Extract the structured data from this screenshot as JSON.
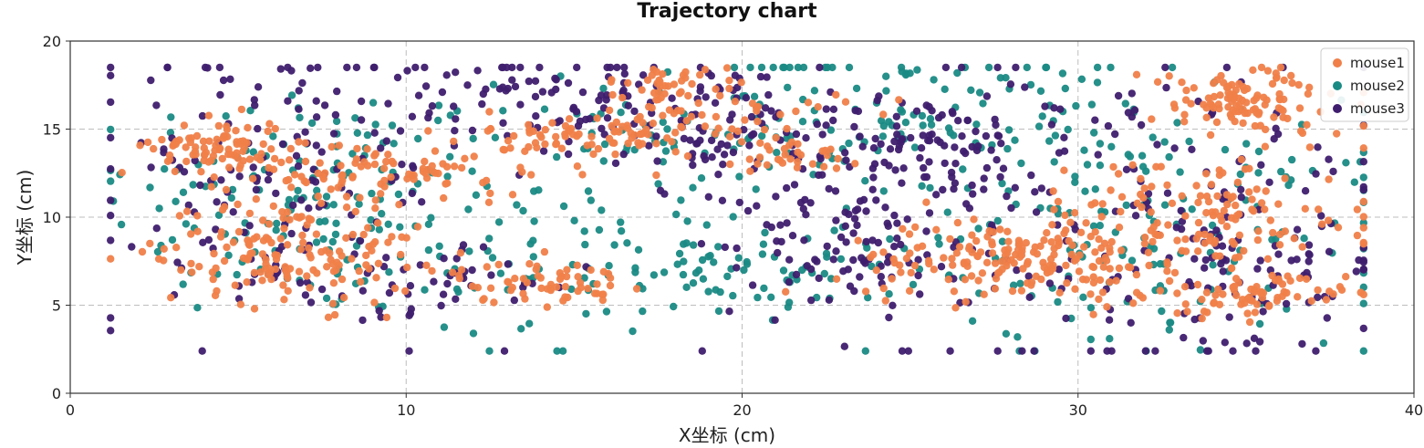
{
  "chart_data": {
    "type": "scatter",
    "title": "Trajectory chart",
    "xlabel": "X坐标 (cm)",
    "ylabel": "Y坐标 (cm)",
    "xlim": [
      0,
      40
    ],
    "ylim": [
      0,
      20
    ],
    "x_ticks": [
      "0",
      "10",
      "20",
      "30",
      "40"
    ],
    "y_ticks": [
      "0",
      "5",
      "10",
      "15",
      "20"
    ],
    "grid": true,
    "legend_position": "top-right",
    "series": [
      {
        "name": "mouse1",
        "color": "#F07F49",
        "clusters": [
          {
            "center": [
              4.5,
              14.0
            ],
            "spread": [
              1.0,
              0.8
            ],
            "count": 90
          },
          {
            "center": [
              9.5,
              12.5
            ],
            "spread": [
              2.0,
              1.0
            ],
            "count": 90
          },
          {
            "center": [
              6.5,
              8.0
            ],
            "spread": [
              2.0,
              1.5
            ],
            "count": 160
          },
          {
            "center": [
              14.0,
              6.3
            ],
            "spread": [
              1.3,
              0.6
            ],
            "count": 60
          },
          {
            "center": [
              15.5,
              14.5
            ],
            "spread": [
              1.5,
              0.8
            ],
            "count": 70
          },
          {
            "center": [
              19.5,
              15.5
            ],
            "spread": [
              1.8,
              1.0
            ],
            "count": 50
          },
          {
            "center": [
              21.5,
              13.5
            ],
            "spread": [
              0.8,
              0.6
            ],
            "count": 30
          },
          {
            "center": [
              18.0,
              17.5
            ],
            "spread": [
              1.0,
              0.5
            ],
            "count": 40
          },
          {
            "center": [
              28.0,
              7.5
            ],
            "spread": [
              2.5,
              1.0
            ],
            "count": 160
          },
          {
            "center": [
              33.5,
              10.0
            ],
            "spread": [
              2.5,
              1.8
            ],
            "count": 160
          },
          {
            "center": [
              35.0,
              16.5
            ],
            "spread": [
              1.5,
              1.0
            ],
            "count": 110
          },
          {
            "center": [
              35.0,
              5.5
            ],
            "spread": [
              1.5,
              0.6
            ],
            "count": 70
          }
        ]
      },
      {
        "name": "mouse2",
        "color": "#1A8A84",
        "clusters": [
          {
            "center": [
              7.0,
              11.0
            ],
            "spread": [
              3.0,
              3.5
            ],
            "count": 150
          },
          {
            "center": [
              20.0,
              15.0
            ],
            "spread": [
              3.0,
              2.5
            ],
            "count": 90
          },
          {
            "center": [
              19.0,
              7.0
            ],
            "spread": [
              3.0,
              1.5
            ],
            "count": 90
          },
          {
            "center": [
              27.0,
              16.0
            ],
            "spread": [
              3.0,
              2.0
            ],
            "count": 80
          },
          {
            "center": [
              32.0,
              9.0
            ],
            "spread": [
              4.0,
              3.5
            ],
            "count": 170
          },
          {
            "center": [
              14.0,
              10.0
            ],
            "spread": [
              3.0,
              4.0
            ],
            "count": 60
          }
        ]
      },
      {
        "name": "mouse3",
        "color": "#3F1D6E",
        "clusters": [
          {
            "center": [
              6.0,
              12.0
            ],
            "spread": [
              3.0,
              4.0
            ],
            "count": 140
          },
          {
            "center": [
              13.0,
              17.0
            ],
            "spread": [
              3.5,
              1.5
            ],
            "count": 90
          },
          {
            "center": [
              19.0,
              15.5
            ],
            "spread": [
              2.0,
              1.8
            ],
            "count": 80
          },
          {
            "center": [
              25.0,
              14.0
            ],
            "spread": [
              2.0,
              1.5
            ],
            "count": 90
          },
          {
            "center": [
              23.5,
              8.5
            ],
            "spread": [
              1.5,
              1.5
            ],
            "count": 70
          },
          {
            "center": [
              29.0,
              11.0
            ],
            "spread": [
              5.0,
              5.0
            ],
            "count": 180
          },
          {
            "center": [
              35.5,
              7.5
            ],
            "spread": [
              2.0,
              3.0
            ],
            "count": 90
          },
          {
            "center": [
              10.0,
              6.5
            ],
            "spread": [
              3.0,
              1.0
            ],
            "count": 50
          }
        ]
      }
    ]
  }
}
